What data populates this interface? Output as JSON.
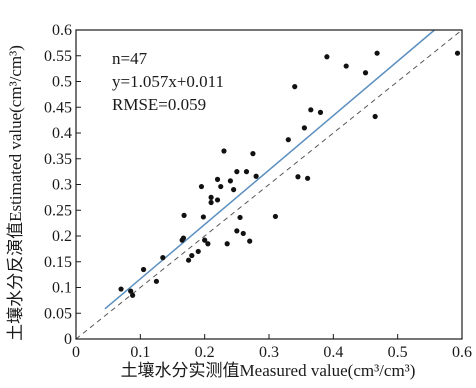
{
  "chart_data": {
    "type": "scatter",
    "title": "",
    "xlabel": "土壤水分实测值Measured value(cm³/cm³)",
    "ylabel": "土壤水分反演值Estimated value(cm³/cm³)",
    "xlim": [
      0,
      0.6
    ],
    "ylim": [
      0,
      0.6
    ],
    "x_ticks": [
      "0",
      "0.1",
      "0.2",
      "0.3",
      "0.4",
      "0.5",
      "0.6"
    ],
    "y_ticks": [
      "0",
      "0.05",
      "0.1",
      "0.15",
      "0.2",
      "0.25",
      "0.3",
      "0.35",
      "0.4",
      "0.45",
      "0.5",
      "0.55",
      "0.6"
    ],
    "grid": false,
    "annotations": [
      "n=47",
      "y=1.057x+0.011",
      "RMSE=0.059"
    ],
    "fit_line": {
      "slope": 1.057,
      "intercept": 0.011,
      "x_range": [
        0.045,
        0.557
      ],
      "color": "#5b8fbf"
    },
    "reference_line": {
      "style": "dashed",
      "slope": 1,
      "intercept": 0,
      "color": "#555555"
    },
    "point_color": "#111111",
    "points": [
      [
        0.07,
        0.097
      ],
      [
        0.085,
        0.093
      ],
      [
        0.088,
        0.085
      ],
      [
        0.105,
        0.135
      ],
      [
        0.125,
        0.112
      ],
      [
        0.135,
        0.158
      ],
      [
        0.165,
        0.192
      ],
      [
        0.167,
        0.196
      ],
      [
        0.168,
        0.24
      ],
      [
        0.175,
        0.153
      ],
      [
        0.18,
        0.162
      ],
      [
        0.19,
        0.17
      ],
      [
        0.195,
        0.296
      ],
      [
        0.198,
        0.237
      ],
      [
        0.2,
        0.192
      ],
      [
        0.205,
        0.185
      ],
      [
        0.21,
        0.275
      ],
      [
        0.21,
        0.265
      ],
      [
        0.22,
        0.27
      ],
      [
        0.22,
        0.31
      ],
      [
        0.225,
        0.296
      ],
      [
        0.23,
        0.365
      ],
      [
        0.235,
        0.185
      ],
      [
        0.24,
        0.307
      ],
      [
        0.245,
        0.29
      ],
      [
        0.25,
        0.325
      ],
      [
        0.25,
        0.21
      ],
      [
        0.255,
        0.236
      ],
      [
        0.26,
        0.205
      ],
      [
        0.265,
        0.325
      ],
      [
        0.27,
        0.19
      ],
      [
        0.275,
        0.36
      ],
      [
        0.28,
        0.316
      ],
      [
        0.31,
        0.238
      ],
      [
        0.33,
        0.387
      ],
      [
        0.34,
        0.49
      ],
      [
        0.345,
        0.315
      ],
      [
        0.355,
        0.41
      ],
      [
        0.36,
        0.312
      ],
      [
        0.365,
        0.445
      ],
      [
        0.38,
        0.44
      ],
      [
        0.39,
        0.548
      ],
      [
        0.42,
        0.53
      ],
      [
        0.45,
        0.517
      ],
      [
        0.465,
        0.432
      ],
      [
        0.468,
        0.555
      ],
      [
        0.593,
        0.555
      ]
    ]
  }
}
